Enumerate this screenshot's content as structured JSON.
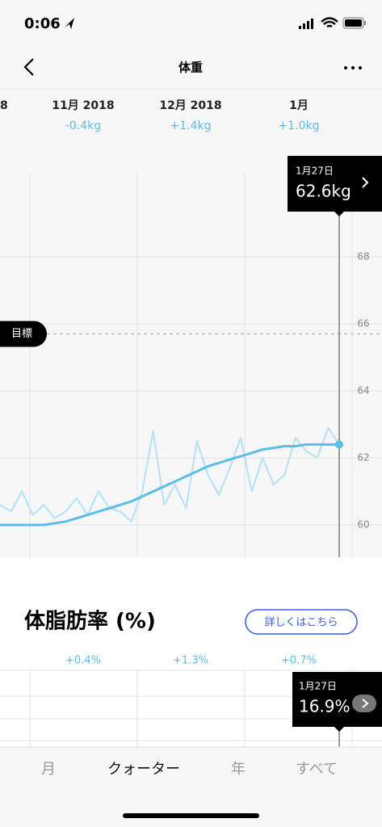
{
  "status_bar": {
    "time": "0:06"
  },
  "nav": {
    "title": "体重"
  },
  "weight": {
    "period_labels": [
      "8",
      "11月 2018",
      "12月 2018",
      "1月"
    ],
    "period_changes": [
      "-0.4kg",
      "+1.4kg",
      "+1.0kg"
    ],
    "goal_label": "目標",
    "tooltip": {
      "date": "1月27日",
      "value": "62.6kg"
    }
  },
  "chart_data": {
    "type": "line",
    "series": [
      {
        "color": "#bfe4f6",
        "values": [
          60.6,
          60.4,
          61.0,
          60.3,
          60.6,
          60.2,
          60.4,
          60.8,
          60.3,
          61.0,
          60.5,
          60.4,
          60.1,
          61.0,
          62.8,
          60.6,
          61.2,
          60.5,
          62.5,
          61.5,
          60.9,
          61.7,
          62.6,
          61.0,
          62.0,
          61.2,
          61.5,
          62.6,
          62.2,
          62.0,
          62.9,
          62.4
        ]
      },
      {
        "color": "#5bbde8",
        "values": [
          60.0,
          60.0,
          60.0,
          60.0,
          60.0,
          60.05,
          60.1,
          60.2,
          60.3,
          60.4,
          60.5,
          60.6,
          60.7,
          60.85,
          61.0,
          61.15,
          61.3,
          61.45,
          61.6,
          61.75,
          61.85,
          61.95,
          62.05,
          62.15,
          62.25,
          62.3,
          62.35,
          62.35,
          62.4,
          62.4,
          62.4,
          62.4
        ]
      }
    ],
    "ylim": [
      59,
      71
    ],
    "yticks": [
      60,
      62,
      64,
      66,
      68
    ],
    "grid": true,
    "goal": 65.7
  },
  "body_fat": {
    "title": "体脂肪率 (%)",
    "button": "詳しくはこちら",
    "period_changes": [
      "+0.4%",
      "+1.3%",
      "+0.7%"
    ],
    "tooltip": {
      "date": "1月27日",
      "value": "16.9%"
    }
  },
  "tabs": [
    "月",
    "クォーター",
    "年",
    "すべて"
  ]
}
